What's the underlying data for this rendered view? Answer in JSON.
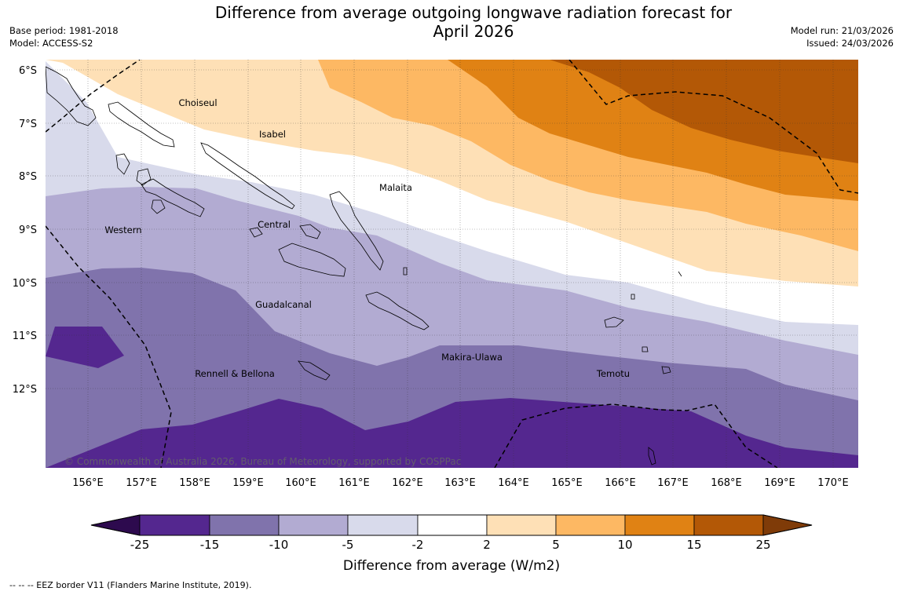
{
  "header": {
    "title_line1": "Difference from average outgoing longwave radiation forecast for",
    "title_line2": "April 2026",
    "base_period": "Base period: 1981-2018",
    "model": "Model: ACCESS-S2",
    "model_run": "Model run: 21/03/2026",
    "issued": "Issued: 24/03/2026"
  },
  "map": {
    "lat_labels": [
      "6°S",
      "7°S",
      "8°S",
      "9°S",
      "10°S",
      "11°S",
      "12°S"
    ],
    "lon_labels": [
      "156°E",
      "157°E",
      "158°E",
      "159°E",
      "160°E",
      "161°E",
      "162°E",
      "163°E",
      "164°E",
      "165°E",
      "166°E",
      "167°E",
      "168°E",
      "169°E",
      "170°E"
    ],
    "regions": [
      "Choiseul",
      "Isabel",
      "Malaita",
      "Western",
      "Central",
      "Guadalcanal",
      "Makira-Ulawa",
      "Rennell & Bellona",
      "Temotu"
    ],
    "copyright": "© Commonwealth of Australia 2026, Bureau of Meteorology, supported by COSPPac"
  },
  "colorbar": {
    "ticks": [
      "-25",
      "-15",
      "-10",
      "-5",
      "-2",
      "2",
      "5",
      "10",
      "15",
      "25"
    ],
    "title": "Difference from average (W/m2)",
    "colors": [
      "#2d0a4e",
      "#54278f",
      "#8073ac",
      "#b2abd2",
      "#d8daeb",
      "#ffffff",
      "#fee0b6",
      "#fdb863",
      "#e08214",
      "#b35806",
      "#7f3b08"
    ]
  },
  "footnote": "--  --  -- EEZ border V11 (Flanders Marine Institute, 2019)."
}
